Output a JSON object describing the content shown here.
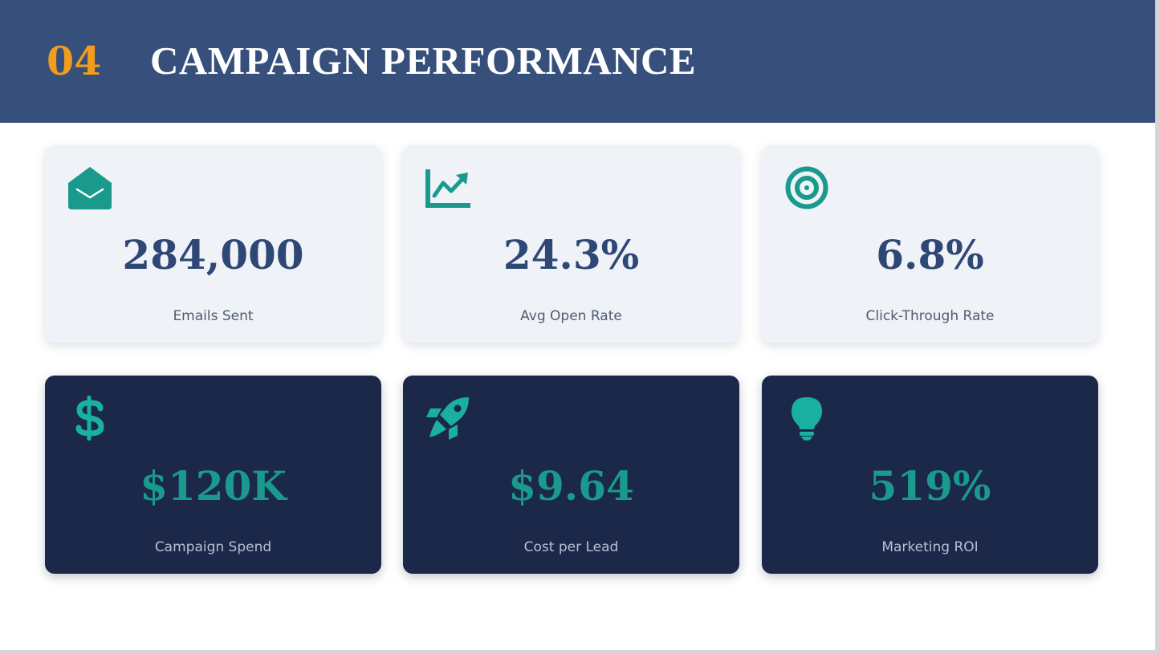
{
  "header": {
    "section_number": "04",
    "title": "CAMPAIGN PERFORMANCE"
  },
  "colors": {
    "header_bg": "#364f7b",
    "section_number": "#f29c1d",
    "light_card_bg": "#eff2f7",
    "light_value": "#2e4775",
    "dark_card_bg": "#1b284a",
    "accent_teal": "#1a9a8c"
  },
  "metrics": [
    {
      "icon": "envelope-open-icon",
      "value": "284,000",
      "label": "Emails Sent"
    },
    {
      "icon": "chart-line-icon",
      "value": "24.3%",
      "label": "Avg Open Rate"
    },
    {
      "icon": "target-icon",
      "value": "6.8%",
      "label": "Click-Through Rate"
    },
    {
      "icon": "dollar-sign-icon",
      "value": "$120K",
      "label": "Campaign Spend"
    },
    {
      "icon": "rocket-icon",
      "value": "$9.64",
      "label": "Cost per Lead"
    },
    {
      "icon": "lightbulb-icon",
      "value": "519%",
      "label": "Marketing ROI"
    }
  ]
}
